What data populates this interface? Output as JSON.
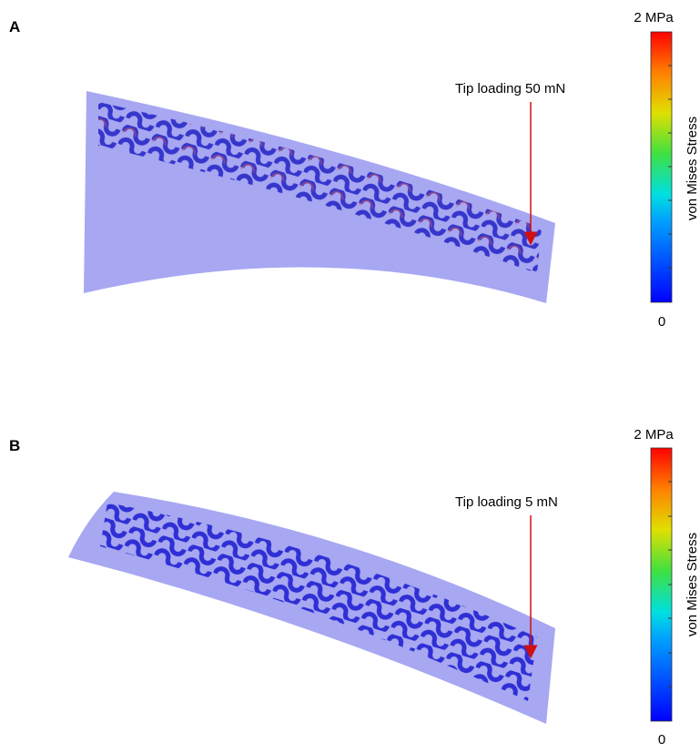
{
  "panels": [
    {
      "label": "A",
      "annotation": "Tip loading 50 mN",
      "colorbar": {
        "max_label": "2 MPa",
        "min_label": "0",
        "title": "von Mises Stress"
      }
    },
    {
      "label": "B",
      "annotation": "Tip loading 5 mN",
      "colorbar": {
        "max_label": "2 MPa",
        "min_label": "0",
        "title": "von Mises Stress"
      }
    }
  ]
}
